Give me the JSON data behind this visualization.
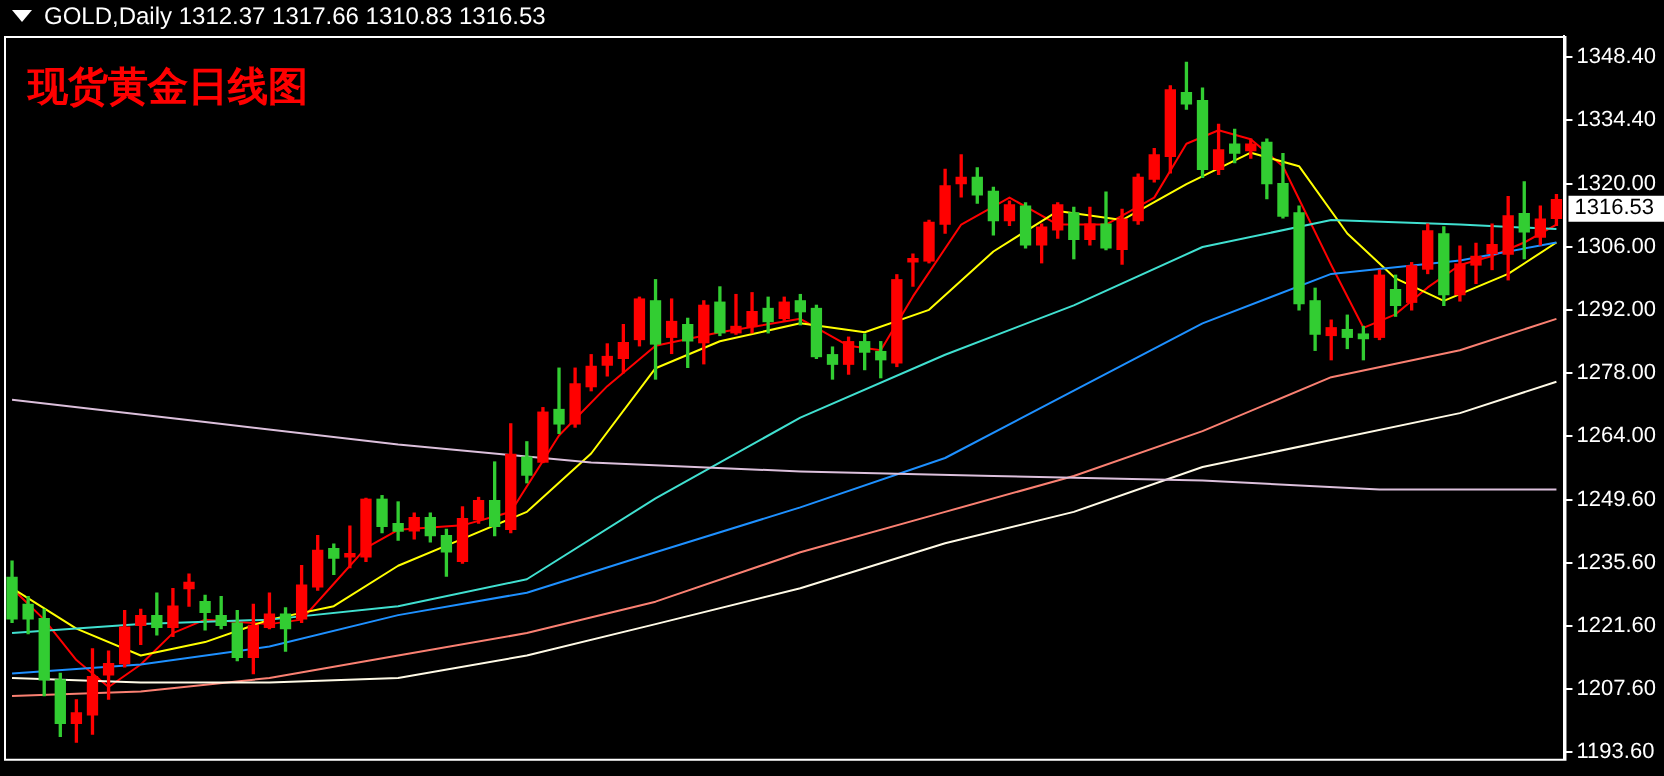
{
  "chart_data": {
    "type": "candlestick",
    "title": "现货黄金日线图",
    "annotations": [
      "GOLD,Daily 1312.37 1317.66 1310.83 1316.53",
      "1316.53"
    ],
    "categories": [
      null,
      null,
      null,
      null,
      null,
      null,
      null,
      null,
      null,
      null,
      null,
      null,
      null,
      null,
      null,
      null,
      null,
      null,
      null,
      null,
      null,
      null,
      null,
      null,
      null,
      null,
      null,
      null,
      null,
      null,
      null,
      null,
      null,
      null,
      null,
      null,
      null,
      null,
      null,
      null,
      null,
      null,
      null,
      null,
      null,
      null,
      null,
      null,
      null,
      null,
      null,
      null,
      null,
      null,
      null,
      null,
      null,
      null,
      null,
      null,
      null,
      null,
      null,
      null,
      null,
      null,
      null,
      null,
      null,
      null,
      null,
      null,
      null,
      null,
      null,
      null,
      null,
      null,
      null,
      null,
      null,
      null,
      null,
      null,
      null,
      null,
      null,
      null,
      null,
      null,
      null,
      null,
      null,
      null,
      null,
      null,
      null
    ],
    "ohlc": [
      [
        1232.4,
        1236.0,
        1222.4,
        1223.2
      ],
      [
        1226.4,
        1228.1,
        1219.9,
        1223.2
      ],
      [
        1223.2,
        1225.3,
        1206.1,
        1209.6
      ],
      [
        1209.6,
        1211.0,
        1197.0,
        1199.9
      ],
      [
        1199.9,
        1205.1,
        1195.7,
        1202.2
      ],
      [
        1201.8,
        1216.5,
        1197.5,
        1210.3
      ],
      [
        1210.7,
        1216.0,
        1205.3,
        1213.2
      ],
      [
        1213.2,
        1225.0,
        1212.5,
        1221.3
      ],
      [
        1221.7,
        1225.3,
        1217.5,
        1223.9
      ],
      [
        1223.9,
        1228.9,
        1219.6,
        1221.3
      ],
      [
        1221.3,
        1229.9,
        1219.3,
        1226.0
      ],
      [
        1229.9,
        1233.1,
        1226.0,
        1231.3
      ],
      [
        1227.0,
        1228.4,
        1220.7,
        1224.6
      ],
      [
        1223.9,
        1228.1,
        1221.0,
        1221.7
      ],
      [
        1222.2,
        1225.0,
        1213.9,
        1214.6
      ],
      [
        1214.6,
        1226.4,
        1211.0,
        1221.7
      ],
      [
        1221.3,
        1228.9,
        1221.0,
        1224.2
      ],
      [
        1224.2,
        1225.6,
        1216.0,
        1221.0
      ],
      [
        1223.2,
        1235.0,
        1222.4,
        1230.7
      ],
      [
        1230.3,
        1241.7,
        1229.6,
        1238.4
      ],
      [
        1238.8,
        1239.8,
        1233.1,
        1236.7
      ],
      [
        1237.0,
        1243.8,
        1234.6,
        1237.7
      ],
      [
        1237.0,
        1250.0,
        1236.0,
        1249.8
      ],
      [
        1249.8,
        1250.6,
        1242.4,
        1243.8
      ],
      [
        1244.4,
        1249.2,
        1240.7,
        1242.7
      ],
      [
        1242.8,
        1246.7,
        1241.0,
        1245.7
      ],
      [
        1245.7,
        1246.7,
        1240.3,
        1241.7
      ],
      [
        1241.7,
        1243.1,
        1232.7,
        1238.1
      ],
      [
        1236.0,
        1248.1,
        1235.6,
        1245.5
      ],
      [
        1245.3,
        1250.2,
        1244.5,
        1249.5
      ],
      [
        1249.5,
        1258.1,
        1241.7,
        1243.8
      ],
      [
        1243.1,
        1266.6,
        1242.4,
        1259.8
      ],
      [
        1259.2,
        1262.6,
        1253.5,
        1255.2
      ],
      [
        1258.1,
        1270.2,
        1258.0,
        1269.2
      ],
      [
        1269.8,
        1279.0,
        1264.5,
        1266.6
      ],
      [
        1266.6,
        1279.0,
        1265.9,
        1275.5
      ],
      [
        1274.9,
        1282.0,
        1274.0,
        1279.4
      ],
      [
        1279.7,
        1284.4,
        1277.3,
        1281.6
      ],
      [
        1281.2,
        1288.7,
        1278.0,
        1284.7
      ],
      [
        1285.4,
        1294.8,
        1284.0,
        1294.4
      ],
      [
        1294.0,
        1298.7,
        1276.6,
        1284.4
      ],
      [
        1285.9,
        1294.4,
        1282.3,
        1289.4
      ],
      [
        1288.7,
        1290.1,
        1279.2,
        1285.1
      ],
      [
        1284.7,
        1294.0,
        1280.0,
        1293.0
      ],
      [
        1293.7,
        1297.1,
        1286.3,
        1286.9
      ],
      [
        1286.9,
        1295.4,
        1286.6,
        1288.3
      ],
      [
        1288.3,
        1295.8,
        1286.9,
        1291.6
      ],
      [
        1292.3,
        1294.8,
        1286.9,
        1289.4
      ],
      [
        1290.1,
        1294.8,
        1289.7,
        1293.7
      ],
      [
        1294.0,
        1295.4,
        1288.7,
        1291.6
      ],
      [
        1292.3,
        1293.0,
        1281.2,
        1281.6
      ],
      [
        1282.0,
        1283.7,
        1276.6,
        1279.9
      ],
      [
        1279.9,
        1285.9,
        1277.7,
        1284.9
      ],
      [
        1284.9,
        1286.6,
        1278.7,
        1282.6
      ],
      [
        1282.7,
        1284.9,
        1276.9,
        1280.9
      ],
      [
        1280.2,
        1299.8,
        1279.4,
        1298.7
      ],
      [
        1302.7,
        1304.4,
        1297.3,
        1303.4
      ],
      [
        1302.9,
        1311.9,
        1302.5,
        1311.5
      ],
      [
        1311.1,
        1323.3,
        1309.1,
        1319.6
      ],
      [
        1320.1,
        1326.5,
        1317.2,
        1321.5
      ],
      [
        1321.5,
        1323.6,
        1315.8,
        1317.6
      ],
      [
        1318.4,
        1319.3,
        1308.7,
        1311.9
      ],
      [
        1311.9,
        1316.2,
        1310.8,
        1315.4
      ],
      [
        1315.1,
        1315.8,
        1305.8,
        1306.5
      ],
      [
        1306.5,
        1311.1,
        1302.5,
        1310.4
      ],
      [
        1309.8,
        1315.8,
        1308.0,
        1315.4
      ],
      [
        1313.6,
        1314.8,
        1303.4,
        1307.7
      ],
      [
        1307.7,
        1314.8,
        1306.5,
        1311.1
      ],
      [
        1311.1,
        1318.2,
        1305.4,
        1305.8
      ],
      [
        1305.5,
        1314.4,
        1302.2,
        1312.2
      ],
      [
        1311.9,
        1322.2,
        1311.1,
        1321.5
      ],
      [
        1321.1,
        1327.9,
        1320.5,
        1326.5
      ],
      [
        1326.2,
        1341.9,
        1322.5,
        1341.0
      ],
      [
        1340.4,
        1347.1,
        1336.7,
        1337.9
      ],
      [
        1338.6,
        1341.4,
        1321.5,
        1323.3
      ],
      [
        1323.3,
        1333.3,
        1322.2,
        1327.6
      ],
      [
        1328.9,
        1332.2,
        1324.8,
        1326.9
      ],
      [
        1327.5,
        1330.0,
        1325.8,
        1328.9
      ],
      [
        1329.3,
        1330.0,
        1316.8,
        1320.1
      ],
      [
        1320.1,
        1326.8,
        1312.5,
        1312.9
      ],
      [
        1313.6,
        1315.1,
        1292.0,
        1293.4
      ],
      [
        1294.0,
        1296.8,
        1283.0,
        1286.6
      ],
      [
        1286.3,
        1289.7,
        1280.9,
        1288.0
      ],
      [
        1287.6,
        1290.8,
        1283.4,
        1285.9
      ],
      [
        1286.6,
        1288.3,
        1280.9,
        1285.6
      ],
      [
        1285.9,
        1300.8,
        1285.4,
        1299.7
      ],
      [
        1296.5,
        1299.7,
        1290.6,
        1293.0
      ],
      [
        1293.7,
        1302.5,
        1292.0,
        1301.8
      ],
      [
        1301.1,
        1311.1,
        1300.1,
        1309.6
      ],
      [
        1308.9,
        1310.5,
        1293.0,
        1295.4
      ],
      [
        1295.4,
        1306.2,
        1294.0,
        1302.2
      ],
      [
        1302.0,
        1306.8,
        1297.9,
        1303.9
      ],
      [
        1304.6,
        1311.1,
        1301.0,
        1306.5
      ],
      [
        1304.4,
        1317.2,
        1298.7,
        1312.9
      ],
      [
        1313.4,
        1320.5,
        1303.4,
        1309.4
      ],
      [
        1308.2,
        1315.1,
        1306.5,
        1312.2
      ],
      [
        1312.37,
        1317.66,
        1310.83,
        1316.53
      ]
    ],
    "colors": [
      "#32cd32",
      "#32cd32",
      "#32cd32",
      "#32cd32",
      "#ff0000",
      "#ff0000",
      "#ff0000",
      "#ff0000",
      "#ff0000",
      "#32cd32",
      "#ff0000",
      "#ff0000",
      "#32cd32",
      "#32cd32",
      "#32cd32",
      "#ff0000",
      "#ff0000",
      "#32cd32",
      "#ff0000",
      "#ff0000",
      "#32cd32",
      "#ff0000",
      "#ff0000",
      "#32cd32",
      "#32cd32",
      "#ff0000",
      "#32cd32",
      "#32cd32",
      "#ff0000",
      "#ff0000",
      "#32cd32",
      "#ff0000",
      "#32cd32",
      "#ff0000",
      "#32cd32",
      "#ff0000",
      "#ff0000",
      "#ff0000",
      "#ff0000",
      "#ff0000",
      "#32cd32",
      "#ff0000",
      "#32cd32",
      "#ff0000",
      "#32cd32",
      "#ff0000",
      "#ff0000",
      "#32cd32",
      "#ff0000",
      "#32cd32",
      "#32cd32",
      "#32cd32",
      "#ff0000",
      "#32cd32",
      "#32cd32",
      "#ff0000",
      "#ff0000",
      "#ff0000",
      "#ff0000",
      "#ff0000",
      "#32cd32",
      "#32cd32",
      "#ff0000",
      "#32cd32",
      "#ff0000",
      "#ff0000",
      "#32cd32",
      "#ff0000",
      "#32cd32",
      "#ff0000",
      "#ff0000",
      "#ff0000",
      "#ff0000",
      "#32cd32",
      "#32cd32",
      "#ff0000",
      "#32cd32",
      "#ff0000",
      "#32cd32",
      "#32cd32",
      "#32cd32",
      "#32cd32",
      "#ff0000",
      "#32cd32",
      "#32cd32",
      "#ff0000",
      "#32cd32",
      "#ff0000",
      "#ff0000",
      "#32cd32",
      "#ff0000",
      "#ff0000",
      "#ff0000",
      "#ff0000",
      "#32cd32",
      "#ff0000",
      "#ff0000"
    ],
    "series": [
      {
        "type": "line",
        "color": "#dcc0dc",
        "values": [
          1272,
          null,
          null,
          null,
          null,
          null,
          null,
          null,
          null,
          null,
          null,
          null,
          1267,
          null,
          null,
          null,
          null,
          null,
          null,
          null,
          null,
          null,
          null,
          null,
          1262,
          null,
          null,
          null,
          null,
          null,
          null,
          null,
          null,
          null,
          null,
          null,
          1258,
          null,
          null,
          null,
          null,
          null,
          null,
          null,
          null,
          null,
          null,
          null,
          null,
          1256,
          null,
          null,
          null,
          null,
          null,
          null,
          null,
          null,
          null,
          null,
          null,
          1255,
          null,
          null,
          null,
          null,
          null,
          null,
          null,
          null,
          null,
          null,
          null,
          null,
          1254,
          null,
          null,
          null,
          null,
          null,
          null,
          null,
          null,
          null,
          null,
          1252,
          null,
          null,
          null,
          null,
          null,
          null,
          null,
          null,
          null,
          null,
          1252
        ]
      },
      {
        "type": "line",
        "color": "#fffae6",
        "values": [
          1210,
          null,
          null,
          null,
          null,
          null,
          null,
          null,
          1209,
          null,
          null,
          null,
          null,
          null,
          null,
          null,
          1209,
          null,
          null,
          null,
          null,
          null,
          null,
          null,
          1210,
          null,
          null,
          null,
          null,
          null,
          null,
          null,
          1215,
          null,
          null,
          null,
          null,
          null,
          null,
          null,
          1222,
          null,
          null,
          null,
          null,
          null,
          null,
          null,
          null,
          1230,
          null,
          null,
          null,
          null,
          null,
          null,
          null,
          null,
          1240,
          null,
          null,
          null,
          null,
          null,
          null,
          null,
          1247,
          null,
          null,
          null,
          null,
          null,
          null,
          null,
          1257,
          null,
          null,
          null,
          null,
          null,
          null,
          null,
          1263,
          null,
          null,
          null,
          null,
          null,
          null,
          null,
          1269,
          null,
          null,
          null,
          null,
          null,
          1276
        ]
      },
      {
        "type": "line",
        "color": "#fa8072",
        "values": [
          1206,
          null,
          null,
          null,
          null,
          null,
          null,
          null,
          1207,
          null,
          null,
          null,
          null,
          null,
          null,
          null,
          1210,
          null,
          null,
          null,
          null,
          null,
          null,
          null,
          1215,
          null,
          null,
          null,
          null,
          null,
          null,
          null,
          1220,
          null,
          null,
          null,
          null,
          null,
          null,
          null,
          1227,
          null,
          null,
          null,
          null,
          null,
          null,
          null,
          null,
          1238,
          null,
          null,
          null,
          null,
          null,
          null,
          null,
          null,
          1247,
          null,
          null,
          null,
          null,
          null,
          null,
          null,
          1255,
          null,
          null,
          null,
          null,
          null,
          null,
          null,
          1265,
          null,
          null,
          null,
          null,
          null,
          null,
          null,
          1277,
          null,
          null,
          null,
          null,
          null,
          null,
          null,
          1283,
          null,
          null,
          null,
          null,
          null,
          1290
        ]
      },
      {
        "type": "line",
        "color": "#1e90ff",
        "values": [
          1211,
          null,
          null,
          null,
          null,
          null,
          null,
          null,
          1213,
          null,
          null,
          null,
          null,
          null,
          null,
          null,
          1217,
          null,
          null,
          null,
          null,
          null,
          null,
          null,
          1224,
          null,
          null,
          null,
          null,
          null,
          null,
          null,
          1229,
          null,
          null,
          null,
          null,
          null,
          null,
          null,
          1238,
          null,
          null,
          null,
          null,
          null,
          null,
          null,
          null,
          1248,
          null,
          null,
          null,
          null,
          null,
          null,
          null,
          null,
          1259,
          null,
          null,
          null,
          null,
          null,
          null,
          null,
          1274,
          null,
          null,
          null,
          null,
          null,
          null,
          null,
          1289,
          null,
          null,
          null,
          null,
          null,
          null,
          null,
          1300,
          null,
          null,
          null,
          null,
          null,
          null,
          null,
          1303,
          null,
          null,
          null,
          null,
          null,
          1307
        ]
      },
      {
        "type": "line",
        "color": "#40e0d0",
        "values": [
          1220,
          null,
          null,
          null,
          null,
          null,
          null,
          null,
          1222,
          null,
          null,
          null,
          null,
          null,
          null,
          null,
          1223,
          null,
          null,
          null,
          null,
          null,
          null,
          null,
          1226,
          null,
          null,
          null,
          null,
          null,
          null,
          null,
          1232,
          null,
          null,
          null,
          null,
          null,
          null,
          null,
          1250,
          null,
          null,
          null,
          null,
          null,
          null,
          null,
          null,
          1268,
          null,
          null,
          null,
          null,
          null,
          null,
          null,
          null,
          1282,
          null,
          null,
          null,
          null,
          null,
          null,
          null,
          1293,
          null,
          null,
          null,
          null,
          null,
          null,
          null,
          1306,
          null,
          null,
          null,
          null,
          null,
          null,
          null,
          1312,
          null,
          null,
          null,
          null,
          null,
          null,
          null,
          1311,
          null,
          null,
          null,
          null,
          null,
          1310
        ]
      },
      {
        "type": "line",
        "color": "#ffff00",
        "values": [
          1230,
          null,
          null,
          null,
          1221,
          null,
          null,
          null,
          1215,
          null,
          null,
          null,
          1218,
          null,
          null,
          null,
          1223,
          null,
          null,
          null,
          1226,
          null,
          null,
          null,
          1235,
          null,
          null,
          null,
          1241,
          null,
          null,
          null,
          1247,
          null,
          null,
          null,
          1260,
          null,
          null,
          null,
          1279,
          null,
          null,
          null,
          1285,
          null,
          null,
          null,
          null,
          1289,
          null,
          null,
          null,
          1287,
          null,
          null,
          null,
          1292,
          null,
          null,
          null,
          1305,
          null,
          null,
          null,
          1314,
          null,
          null,
          null,
          1312,
          null,
          null,
          null,
          1320,
          null,
          null,
          null,
          1327,
          null,
          null,
          1324,
          null,
          null,
          1309,
          null,
          null,
          1299,
          null,
          null,
          1294,
          null,
          null,
          null,
          1300,
          null,
          null,
          1307
        ]
      },
      {
        "type": "line",
        "color": "#ff0000",
        "values": [
          1230,
          null,
          1223,
          null,
          1214,
          null,
          1208,
          null,
          1213,
          null,
          1220,
          null,
          1223,
          null,
          null,
          null,
          1222,
          null,
          1223,
          null,
          1231,
          null,
          1239,
          null,
          1243,
          null,
          null,
          null,
          1244,
          null,
          null,
          1247,
          null,
          null,
          1264,
          null,
          null,
          1275,
          null,
          null,
          1284,
          null,
          null,
          null,
          1287,
          null,
          null,
          null,
          null,
          1290,
          null,
          null,
          1284,
          null,
          1283,
          null,
          1295,
          null,
          null,
          1311,
          null,
          null,
          1317,
          null,
          null,
          1311,
          null,
          null,
          1311,
          null,
          null,
          1317,
          null,
          1329,
          null,
          1332,
          null,
          1330,
          null,
          1324,
          null,
          null,
          1302,
          null,
          1288,
          null,
          1291,
          null,
          1297,
          null,
          1302,
          null,
          1304,
          null,
          1307,
          null,
          1311
        ]
      }
    ],
    "ylim": [
      1192,
      1353
    ],
    "yticks": [
      {
        "value": 1193.6,
        "label": "1193.60"
      },
      {
        "value": 1207.6,
        "label": "1207.60"
      },
      {
        "value": 1221.6,
        "label": "1221.60"
      },
      {
        "value": 1235.6,
        "label": "1235.60"
      },
      {
        "value": 1249.6,
        "label": "1249.60"
      },
      {
        "value": 1264,
        "label": "1264.00"
      },
      {
        "value": 1278,
        "label": "1278.00"
      },
      {
        "value": 1292,
        "label": "1292.00"
      },
      {
        "value": 1306,
        "label": "1306.00"
      },
      {
        "value": 1320,
        "label": "1320.00"
      },
      {
        "value": 1334.4,
        "label": "1334.40"
      },
      {
        "value": 1348.4,
        "label": "1348.40"
      }
    ],
    "tick_labels": "y",
    "grid": false,
    "legend": false
  }
}
